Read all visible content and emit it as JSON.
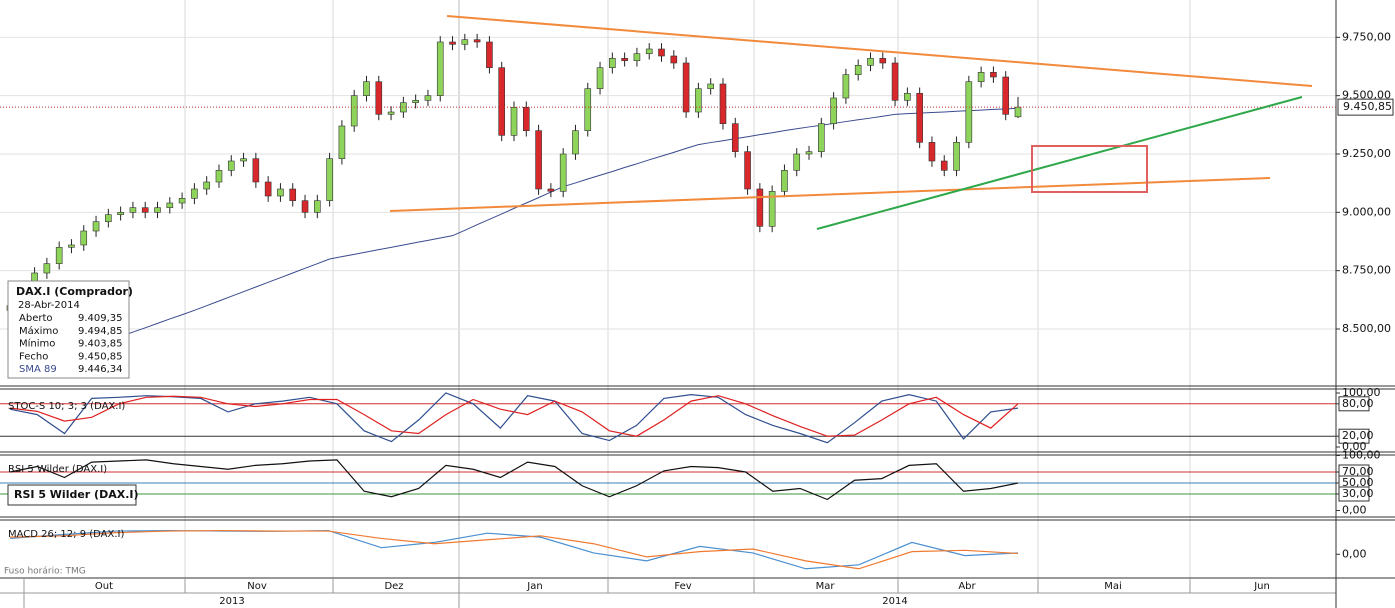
{
  "chart_data": [
    {
      "type": "candlestick",
      "ohlc": [
        [
          8580,
          8625,
          8555,
          8600
        ],
        [
          8600,
          8645,
          8575,
          8620
        ],
        [
          8620,
          8765,
          8595,
          8740
        ],
        [
          8740,
          8805,
          8715,
          8780
        ],
        [
          8780,
          8875,
          8755,
          8850
        ],
        [
          8850,
          8885,
          8825,
          8860
        ],
        [
          8860,
          8945,
          8835,
          8920
        ],
        [
          8920,
          8985,
          8895,
          8960
        ],
        [
          8960,
          9015,
          8935,
          8990
        ],
        [
          8990,
          9025,
          8965,
          9000
        ],
        [
          9000,
          9045,
          8975,
          9020
        ],
        [
          9020,
          9045,
          8975,
          9000
        ],
        [
          9000,
          9045,
          8975,
          9020
        ],
        [
          9020,
          9065,
          8995,
          9040
        ],
        [
          9040,
          9085,
          9015,
          9060
        ],
        [
          9060,
          9125,
          9035,
          9100
        ],
        [
          9100,
          9155,
          9075,
          9130
        ],
        [
          9130,
          9205,
          9105,
          9180
        ],
        [
          9180,
          9245,
          9155,
          9220
        ],
        [
          9220,
          9255,
          9195,
          9230
        ],
        [
          9230,
          9255,
          9105,
          9130
        ],
        [
          9130,
          9155,
          9045,
          9070
        ],
        [
          9070,
          9125,
          9045,
          9100
        ],
        [
          9100,
          9125,
          9025,
          9050
        ],
        [
          9050,
          9075,
          8975,
          9000
        ],
        [
          9000,
          9075,
          8975,
          9050
        ],
        [
          9050,
          9255,
          9025,
          9230
        ],
        [
          9230,
          9395,
          9205,
          9370
        ],
        [
          9370,
          9525,
          9345,
          9500
        ],
        [
          9500,
          9585,
          9475,
          9560
        ],
        [
          9560,
          9585,
          9395,
          9420
        ],
        [
          9420,
          9455,
          9395,
          9430
        ],
        [
          9430,
          9495,
          9405,
          9470
        ],
        [
          9470,
          9505,
          9445,
          9480
        ],
        [
          9480,
          9525,
          9455,
          9500
        ],
        [
          9500,
          9755,
          9475,
          9730
        ],
        [
          9730,
          9755,
          9695,
          9720
        ],
        [
          9720,
          9765,
          9695,
          9740
        ],
        [
          9740,
          9765,
          9705,
          9730
        ],
        [
          9730,
          9755,
          9595,
          9620
        ],
        [
          9620,
          9645,
          9305,
          9330
        ],
        [
          9330,
          9475,
          9305,
          9450
        ],
        [
          9450,
          9475,
          9325,
          9350
        ],
        [
          9350,
          9375,
          9075,
          9100
        ],
        [
          9100,
          9125,
          9065,
          9090
        ],
        [
          9090,
          9275,
          9065,
          9250
        ],
        [
          9250,
          9375,
          9225,
          9350
        ],
        [
          9350,
          9555,
          9325,
          9530
        ],
        [
          9530,
          9645,
          9505,
          9620
        ],
        [
          9620,
          9685,
          9595,
          9660
        ],
        [
          9660,
          9685,
          9625,
          9650
        ],
        [
          9650,
          9705,
          9625,
          9680
        ],
        [
          9680,
          9725,
          9655,
          9700
        ],
        [
          9700,
          9725,
          9645,
          9670
        ],
        [
          9670,
          9695,
          9615,
          9640
        ],
        [
          9640,
          9665,
          9405,
          9430
        ],
        [
          9430,
          9555,
          9405,
          9530
        ],
        [
          9530,
          9575,
          9505,
          9550
        ],
        [
          9550,
          9575,
          9355,
          9380
        ],
        [
          9380,
          9405,
          9235,
          9260
        ],
        [
          9260,
          9285,
          9075,
          9100
        ],
        [
          9100,
          9125,
          8915,
          8940
        ],
        [
          8940,
          9115,
          8915,
          9090
        ],
        [
          9090,
          9205,
          9065,
          9180
        ],
        [
          9180,
          9275,
          9155,
          9250
        ],
        [
          9250,
          9285,
          9225,
          9260
        ],
        [
          9260,
          9405,
          9235,
          9380
        ],
        [
          9380,
          9515,
          9355,
          9490
        ],
        [
          9490,
          9615,
          9465,
          9590
        ],
        [
          9590,
          9655,
          9565,
          9630
        ],
        [
          9630,
          9685,
          9605,
          9660
        ],
        [
          9660,
          9685,
          9615,
          9640
        ],
        [
          9640,
          9665,
          9455,
          9480
        ],
        [
          9480,
          9535,
          9455,
          9510
        ],
        [
          9510,
          9535,
          9275,
          9300
        ],
        [
          9300,
          9325,
          9195,
          9220
        ],
        [
          9220,
          9245,
          9155,
          9180
        ],
        [
          9180,
          9325,
          9155,
          9300
        ],
        [
          9300,
          9585,
          9275,
          9560
        ],
        [
          9560,
          9625,
          9535,
          9600
        ],
        [
          9600,
          9625,
          9555,
          9580
        ],
        [
          9580,
          9605,
          9395,
          9420
        ],
        [
          9409.35,
          9494.85,
          9403.85,
          9450.85
        ]
      ],
      "up_color": "#8fd45a",
      "down_color": "#d9282b",
      "series": [
        {
          "name": "SMA 89",
          "color": "#3b4a8f",
          "values": [
            8300,
            8319,
            8337,
            8356,
            8375,
            8393,
            8412,
            8431,
            8449,
            8468,
            8487,
            8505,
            8524,
            8543,
            8561,
            8580,
            8600,
            8620,
            8640,
            8660,
            8680,
            8700,
            8720,
            8740,
            8760,
            8780,
            8800,
            8810,
            8820,
            8830,
            8840,
            8850,
            8860,
            8870,
            8880,
            8890,
            8900,
            8923,
            8947,
            8970,
            8993,
            9017,
            9040,
            9063,
            9087,
            9110,
            9126,
            9143,
            9159,
            9175,
            9192,
            9208,
            9225,
            9241,
            9257,
            9274,
            9290,
            9299,
            9307,
            9316,
            9324,
            9333,
            9341,
            9350,
            9358,
            9366,
            9373,
            9381,
            9389,
            9397,
            9404,
            9412,
            9420,
            9423,
            9425,
            9428,
            9430,
            9433,
            9436,
            9438,
            9441,
            9443,
            9446.34
          ]
        }
      ],
      "ylim": [
        8260,
        9910
      ],
      "yticks": [
        {
          "value": 8500,
          "label": "8.500,00"
        },
        {
          "value": 8750,
          "label": "8.750,00"
        },
        {
          "value": 9000,
          "label": "9.000,00"
        },
        {
          "value": 9250,
          "label": "9.250,00"
        },
        {
          "value": 9500,
          "label": "9.500,00"
        },
        {
          "value": 9750,
          "label": "9.750,00"
        }
      ],
      "grid": true,
      "last_price": {
        "value": 9450.85,
        "label": "9.450,85"
      },
      "months": [
        "Out",
        "Nov",
        "Dez",
        "Jan",
        "Fev",
        "Mar",
        "Abr",
        "Mai",
        "Jun"
      ],
      "years": [
        "2013",
        "2014"
      ],
      "info": {
        "title": "DAX.I (Comprador)",
        "date": "28-Abr-2014",
        "rows": [
          [
            "Aberto",
            "9.409,35"
          ],
          [
            "Máximo",
            "9.494,85"
          ],
          [
            "Mínimo",
            "9.403,85"
          ],
          [
            "Fecho",
            "9.450,85"
          ],
          [
            "SMA 89",
            "9.446,34"
          ]
        ]
      }
    },
    {
      "type": "line",
      "title": "STOC-S 10; 3; 3 (DAX.I)",
      "series": [
        {
          "color": "#2f4f8f",
          "values": [
            70,
            60,
            25,
            90,
            92,
            95,
            93,
            90,
            65,
            80,
            85,
            92,
            80,
            30,
            10,
            50,
            100,
            80,
            35,
            95,
            85,
            25,
            12,
            40,
            90,
            97,
            92,
            60,
            40,
            25,
            8,
            45,
            85,
            97,
            85,
            15,
            65,
            72
          ]
        },
        {
          "color": "#e02020",
          "values": [
            72,
            66,
            48,
            55,
            80,
            92,
            94,
            92,
            80,
            75,
            80,
            88,
            88,
            60,
            30,
            25,
            60,
            88,
            70,
            60,
            85,
            65,
            30,
            20,
            50,
            85,
            95,
            80,
            58,
            38,
            20,
            22,
            50,
            80,
            92,
            60,
            35,
            80
          ]
        }
      ],
      "ylim": [
        0,
        100
      ],
      "yticks": [
        {
          "value": 100,
          "label": "100,00"
        },
        {
          "value": 80,
          "label": "80,00"
        },
        {
          "value": 20,
          "label": "20,00"
        },
        {
          "value": 0,
          "label": "0,00"
        }
      ],
      "tick_line_colors": [
        null,
        "#d03030",
        "#333333",
        null
      ]
    },
    {
      "type": "line",
      "title": "RSI 5 Wilder (DAX.I)",
      "series": [
        {
          "color": "#111111",
          "values": [
            70,
            80,
            60,
            88,
            90,
            92,
            85,
            80,
            75,
            82,
            85,
            90,
            92,
            35,
            25,
            40,
            82,
            75,
            60,
            88,
            80,
            45,
            25,
            45,
            72,
            80,
            78,
            70,
            35,
            40,
            20,
            55,
            58,
            82,
            85,
            35,
            40,
            50
          ]
        }
      ],
      "ylim": [
        0,
        100
      ],
      "yticks": [
        {
          "value": 100,
          "label": "100,00"
        },
        {
          "value": 70,
          "label": "70,00"
        },
        {
          "value": 50,
          "label": "50,00"
        },
        {
          "value": 30,
          "label": "30,00"
        },
        {
          "value": 0,
          "label": "0,00"
        }
      ],
      "tick_line_colors": [
        null,
        "#d03030",
        "#3b7fb5",
        "#3a9a3a",
        null
      ]
    },
    {
      "type": "line",
      "title": "MACD 26; 12; 9 (DAX.I)",
      "series": [
        {
          "color": "#4a8fd0",
          "values": [
            60,
            75,
            88,
            90,
            88,
            87,
            90,
            25,
            45,
            80,
            65,
            5,
            -25,
            30,
            5,
            -55,
            -40,
            45,
            -5,
            5
          ]
        },
        {
          "color": "#f07a30",
          "values": [
            65,
            70,
            82,
            88,
            90,
            88,
            88,
            60,
            40,
            55,
            70,
            40,
            -10,
            10,
            20,
            -25,
            -55,
            10,
            15,
            3
          ]
        }
      ],
      "ylim": [
        -90,
        130
      ],
      "yticks": [
        {
          "value": 0,
          "label": "0,00"
        }
      ],
      "tick_line_colors": [
        null
      ],
      "footer": "Fuso horário: TMG"
    }
  ]
}
